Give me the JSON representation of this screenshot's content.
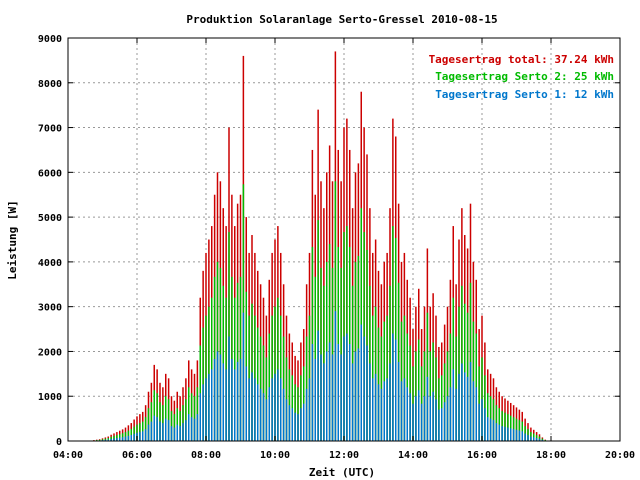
{
  "chart_data": {
    "type": "bar",
    "title": "Produktion Solaranlage Serto-Gressel 2010-08-15",
    "xlabel": "Zeit (UTC)",
    "ylabel": "Leistung [W]",
    "xlim": [
      "04:00",
      "20:00"
    ],
    "ylim": [
      0,
      9000
    ],
    "x_ticks": [
      "04:00",
      "06:00",
      "08:00",
      "10:00",
      "12:00",
      "14:00",
      "16:00",
      "18:00",
      "20:00"
    ],
    "y_ticks": [
      "0",
      "1000",
      "2000",
      "3000",
      "4000",
      "5000",
      "6000",
      "7000",
      "8000",
      "9000"
    ],
    "grid": true,
    "legend_position": "top-right",
    "legend": [
      "Tagesertrag total: 37.24 kWh",
      "Tagesertrag Serto 2: 25 kWh",
      "Tagesertrag Serto 1: 12 kWh"
    ],
    "colors": {
      "total": "#cc0000",
      "serto2": "#00bb00",
      "serto1": "#0077cc"
    },
    "interval_minutes": 5,
    "start_time": "04:40",
    "series": [
      {
        "name": "Tagesertrag total",
        "values": [
          10,
          20,
          30,
          40,
          60,
          80,
          100,
          140,
          170,
          200,
          230,
          260,
          300,
          350,
          400,
          480,
          550,
          600,
          650,
          800,
          1100,
          1300,
          1700,
          1600,
          1300,
          1200,
          1500,
          1400,
          1000,
          900,
          1100,
          1000,
          1200,
          1400,
          1800,
          1600,
          1500,
          1800,
          3200,
          3800,
          4200,
          4500,
          4800,
          5500,
          6000,
          5800,
          5200,
          4800,
          7000,
          5500,
          4800,
          5300,
          5500,
          8600,
          5000,
          4200,
          4600,
          4200,
          3800,
          3500,
          3200,
          2800,
          3600,
          4200,
          4500,
          4800,
          4200,
          3500,
          2800,
          2400,
          2200,
          1900,
          1800,
          2200,
          2500,
          3500,
          4200,
          6500,
          5500,
          7400,
          5800,
          5200,
          6000,
          6600,
          5800,
          8700,
          6500,
          5800,
          7000,
          7200,
          6500,
          5200,
          6000,
          6200,
          7800,
          7000,
          6400,
          5200,
          4200,
          4500,
          3800,
          3500,
          4000,
          4200,
          5200,
          7200,
          6800,
          5300,
          4000,
          4200,
          3600,
          3200,
          2500,
          3000,
          3400,
          2500,
          3000,
          4300,
          3000,
          3300,
          2800,
          2100,
          2200,
          2600,
          3000,
          3600,
          4800,
          3500,
          4500,
          5200,
          4600,
          4300,
          5300,
          4000,
          3600,
          2500,
          2800,
          2200,
          1600,
          1500,
          1400,
          1200,
          1100,
          1000,
          950,
          900,
          850,
          800,
          750,
          700,
          650,
          500,
          400,
          300,
          250,
          200,
          150,
          80,
          30
        ]
      },
      {
        "name": "Tagesertrag Serto 2",
        "values": [
          6,
          13,
          20,
          26,
          40,
          53,
          66,
          93,
          113,
          133,
          153,
          173,
          200,
          233,
          266,
          320,
          366,
          400,
          433,
          533,
          733,
          866,
          1133,
          1066,
          866,
          800,
          1000,
          933,
          666,
          600,
          733,
          666,
          800,
          933,
          1200,
          1066,
          1000,
          1200,
          2133,
          2533,
          2800,
          3000,
          3200,
          3666,
          4000,
          3866,
          3466,
          3200,
          4666,
          3666,
          3200,
          3533,
          3666,
          5733,
          3333,
          2800,
          3066,
          2800,
          2533,
          2333,
          2133,
          1866,
          2400,
          2800,
          3000,
          3200,
          2800,
          2333,
          1866,
          1600,
          1466,
          1266,
          1200,
          1466,
          1666,
          2333,
          2800,
          4333,
          3666,
          4933,
          3866,
          3466,
          4000,
          4400,
          3866,
          5800,
          4333,
          3866,
          4666,
          4800,
          4333,
          3466,
          4000,
          4133,
          5200,
          4666,
          4266,
          3466,
          2800,
          3000,
          2533,
          2333,
          2666,
          2800,
          3466,
          4800,
          4533,
          3533,
          2666,
          2800,
          2400,
          2133,
          1666,
          2000,
          2266,
          1666,
          2000,
          2866,
          2000,
          2200,
          1866,
          1400,
          1466,
          1733,
          2000,
          2400,
          3200,
          2333,
          3000,
          3466,
          3066,
          2866,
          3533,
          2666,
          2400,
          1666,
          1866,
          1466,
          1066,
          1000,
          933,
          800,
          733,
          666,
          633,
          600,
          566,
          533,
          500,
          466,
          433,
          333,
          266,
          200,
          166,
          133,
          100,
          53,
          20
        ]
      },
      {
        "name": "Tagesertrag Serto 1",
        "values": [
          3,
          6,
          10,
          13,
          20,
          26,
          33,
          46,
          56,
          66,
          76,
          86,
          100,
          116,
          133,
          160,
          183,
          200,
          216,
          266,
          366,
          433,
          566,
          533,
          433,
          400,
          500,
          466,
          333,
          300,
          366,
          333,
          400,
          466,
          600,
          533,
          500,
          600,
          1066,
          1266,
          1400,
          1500,
          1600,
          1833,
          2000,
          1933,
          1733,
          1600,
          2333,
          1833,
          1600,
          1766,
          1833,
          2866,
          1666,
          1400,
          1533,
          1400,
          1266,
          1166,
          1066,
          933,
          1200,
          1400,
          1500,
          1600,
          1400,
          1166,
          933,
          800,
          733,
          633,
          600,
          733,
          833,
          1166,
          1400,
          2166,
          1833,
          2466,
          1933,
          1733,
          2000,
          2200,
          1933,
          2900,
          2166,
          1933,
          2333,
          2400,
          2166,
          1733,
          2000,
          2066,
          2600,
          2333,
          2133,
          1733,
          1400,
          1500,
          1266,
          1166,
          1333,
          1400,
          1733,
          2400,
          2266,
          1766,
          1333,
          1400,
          1200,
          1066,
          833,
          1000,
          1133,
          833,
          1000,
          1433,
          1000,
          1100,
          933,
          700,
          733,
          866,
          1000,
          1200,
          1600,
          1166,
          1500,
          1733,
          1533,
          1433,
          1766,
          1333,
          1200,
          833,
          933,
          733,
          533,
          500,
          466,
          400,
          366,
          333,
          316,
          300,
          283,
          266,
          250,
          233,
          216,
          166,
          133,
          100,
          83,
          66,
          50,
          26,
          10
        ]
      }
    ]
  }
}
